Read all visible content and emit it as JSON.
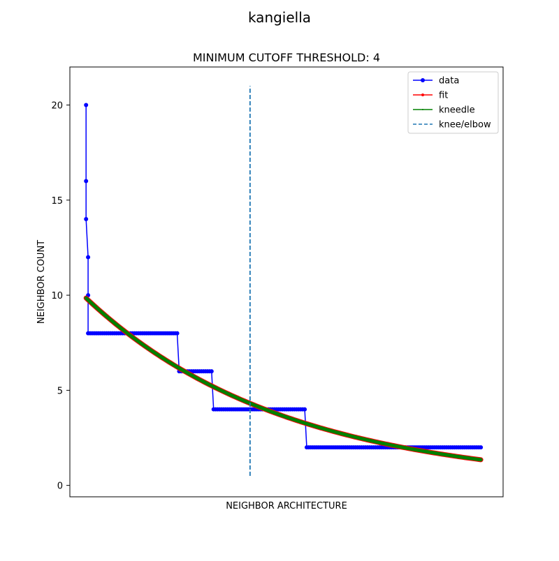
{
  "chart_data": {
    "type": "line",
    "suptitle": "kangiella",
    "title": "MINIMUM CUTOFF THRESHOLD: 4",
    "xlabel": "NEIGHBOR ARCHITECTURE",
    "ylabel": "NEIGHBOR COUNT",
    "xlim": [
      -8.0,
      206.0
    ],
    "ylim": [
      -0.6,
      22.0
    ],
    "xticks_visible": false,
    "yticks": [
      0,
      5,
      10,
      15,
      20
    ],
    "grid": false,
    "legend_position": "top-right",
    "knee_x": 81,
    "knee_line_ylim": [
      0.5,
      21.0
    ],
    "series": [
      {
        "name": "data",
        "color": "#0000ff",
        "marker": "circle",
        "step_values": [
          {
            "from_x": 0,
            "to_x": 0,
            "y": 20
          },
          {
            "from_x": 0,
            "to_x": 0,
            "y": 16
          },
          {
            "from_x": 0,
            "to_x": 0,
            "y": 14
          },
          {
            "from_x": 1,
            "to_x": 1,
            "y": 12
          },
          {
            "from_x": 1,
            "to_x": 1,
            "y": 10
          },
          {
            "from_x": 1,
            "to_x": 45,
            "y": 8
          },
          {
            "from_x": 46,
            "to_x": 62,
            "y": 6
          },
          {
            "from_x": 63,
            "to_x": 108,
            "y": 4
          },
          {
            "from_x": 109,
            "to_x": 195,
            "y": 2
          }
        ]
      },
      {
        "name": "fit",
        "color": "#ff0000",
        "marker": "point",
        "model": "exponential decay",
        "points": [
          [
            0,
            9.85
          ],
          [
            30,
            7.95
          ],
          [
            45,
            7.1
          ],
          [
            62,
            6.15
          ],
          [
            81,
            4.3
          ],
          [
            108,
            3.25
          ],
          [
            150,
            2.2
          ],
          [
            195,
            1.35
          ]
        ]
      },
      {
        "name": "kneedle",
        "color": "#008000",
        "marker": "pixel",
        "points": [
          [
            0,
            9.85
          ],
          [
            30,
            7.95
          ],
          [
            45,
            7.1
          ],
          [
            62,
            6.15
          ],
          [
            81,
            4.3
          ],
          [
            108,
            3.25
          ],
          [
            150,
            2.2
          ],
          [
            195,
            1.35
          ]
        ]
      },
      {
        "name": "knee/elbow",
        "color": "#1f77b4",
        "style": "dashed"
      }
    ]
  }
}
